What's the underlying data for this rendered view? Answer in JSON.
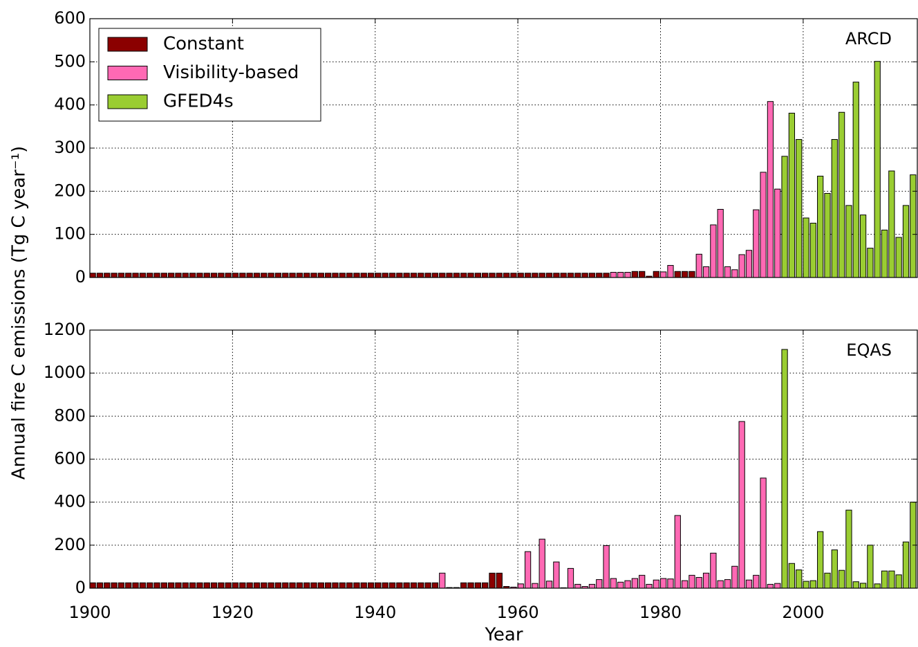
{
  "chart_data": [
    {
      "type": "bar",
      "title": "ARCD",
      "ylabel": "Annual fire C emissions (Tg C year⁻¹)",
      "xlim": [
        1900,
        2016
      ],
      "ylim": [
        0,
        600
      ],
      "yticks": [
        0,
        100,
        200,
        300,
        400,
        500,
        600
      ],
      "grid": true,
      "legend": "upper left",
      "series": [
        {
          "name": "Constant",
          "color": "#8b0000",
          "x": [
            1900,
            1901,
            1902,
            1903,
            1904,
            1905,
            1906,
            1907,
            1908,
            1909,
            1910,
            1911,
            1912,
            1913,
            1914,
            1915,
            1916,
            1917,
            1918,
            1919,
            1920,
            1921,
            1922,
            1923,
            1924,
            1925,
            1926,
            1927,
            1928,
            1929,
            1930,
            1931,
            1932,
            1933,
            1934,
            1935,
            1936,
            1937,
            1938,
            1939,
            1940,
            1941,
            1942,
            1943,
            1944,
            1945,
            1946,
            1947,
            1948,
            1949,
            1950,
            1951,
            1952,
            1953,
            1954,
            1955,
            1956,
            1957,
            1958,
            1959,
            1960,
            1961,
            1962,
            1963,
            1964,
            1965,
            1966,
            1967,
            1968,
            1969,
            1970,
            1971,
            1972,
            1976,
            1977,
            1978,
            1979,
            1982,
            1983,
            1984
          ],
          "values": [
            10,
            10,
            10,
            10,
            10,
            10,
            10,
            10,
            10,
            10,
            10,
            10,
            10,
            10,
            10,
            10,
            10,
            10,
            10,
            10,
            10,
            10,
            10,
            10,
            10,
            10,
            10,
            10,
            10,
            10,
            10,
            10,
            10,
            10,
            10,
            10,
            10,
            10,
            10,
            10,
            10,
            10,
            10,
            10,
            10,
            10,
            10,
            10,
            10,
            10,
            10,
            10,
            10,
            10,
            10,
            10,
            10,
            10,
            10,
            10,
            10,
            10,
            10,
            10,
            10,
            10,
            10,
            10,
            10,
            10,
            10,
            10,
            10,
            14,
            14,
            3,
            14,
            14,
            14,
            14
          ]
        },
        {
          "name": "Visibility-based",
          "color": "#ff69b4",
          "x": [
            1973,
            1974,
            1975,
            1980,
            1981,
            1985,
            1986,
            1987,
            1988,
            1989,
            1990,
            1991,
            1992,
            1993,
            1994,
            1995,
            1996
          ],
          "values": [
            12,
            12,
            12,
            13,
            28,
            54,
            25,
            122,
            158,
            25,
            18,
            53,
            63,
            157,
            244,
            408,
            205
          ]
        },
        {
          "name": "GFED4s",
          "color": "#9acd32",
          "x": [
            1997,
            1998,
            1999,
            2000,
            2001,
            2002,
            2003,
            2004,
            2005,
            2006,
            2007,
            2008,
            2009,
            2010,
            2011,
            2012,
            2013,
            2014,
            2015
          ],
          "values": [
            281,
            381,
            320,
            138,
            126,
            235,
            195,
            320,
            383,
            167,
            453,
            145,
            68,
            501,
            110,
            247,
            93,
            167,
            238
          ]
        }
      ]
    },
    {
      "type": "bar",
      "title": "EQAS",
      "xlabel": "Year",
      "xlim": [
        1900,
        2016
      ],
      "xticks": [
        1900,
        1920,
        1940,
        1960,
        1980,
        2000
      ],
      "ylim": [
        0,
        1200
      ],
      "yticks": [
        0,
        200,
        400,
        600,
        800,
        1000,
        1200
      ],
      "grid": true,
      "series": [
        {
          "name": "Constant",
          "color": "#8b0000",
          "x": [
            1900,
            1901,
            1902,
            1903,
            1904,
            1905,
            1906,
            1907,
            1908,
            1909,
            1910,
            1911,
            1912,
            1913,
            1914,
            1915,
            1916,
            1917,
            1918,
            1919,
            1920,
            1921,
            1922,
            1923,
            1924,
            1925,
            1926,
            1927,
            1928,
            1929,
            1930,
            1931,
            1932,
            1933,
            1934,
            1935,
            1936,
            1937,
            1938,
            1939,
            1940,
            1941,
            1942,
            1943,
            1944,
            1945,
            1946,
            1947,
            1948,
            1950,
            1951,
            1952,
            1953,
            1954,
            1955,
            1956,
            1957,
            1958
          ],
          "values": [
            25,
            25,
            25,
            25,
            25,
            25,
            25,
            25,
            25,
            25,
            25,
            25,
            25,
            25,
            25,
            25,
            25,
            25,
            25,
            25,
            25,
            25,
            25,
            25,
            25,
            25,
            25,
            25,
            25,
            25,
            25,
            25,
            25,
            25,
            25,
            25,
            25,
            25,
            25,
            25,
            25,
            25,
            25,
            25,
            25,
            25,
            25,
            25,
            25,
            3,
            3,
            25,
            25,
            25,
            25,
            70,
            70,
            8
          ]
        },
        {
          "name": "Visibility-based",
          "color": "#ff69b4",
          "x": [
            1949,
            1959,
            1960,
            1961,
            1962,
            1963,
            1964,
            1965,
            1966,
            1967,
            1968,
            1969,
            1970,
            1971,
            1972,
            1973,
            1974,
            1975,
            1976,
            1977,
            1978,
            1979,
            1980,
            1981,
            1982,
            1983,
            1984,
            1985,
            1986,
            1987,
            1988,
            1989,
            1990,
            1991,
            1992,
            1993,
            1994,
            1995,
            1996
          ],
          "values": [
            70,
            5,
            20,
            170,
            22,
            228,
            33,
            122,
            2,
            92,
            18,
            8,
            18,
            40,
            198,
            45,
            28,
            35,
            45,
            60,
            18,
            38,
            45,
            43,
            338,
            35,
            60,
            50,
            70,
            163,
            35,
            40,
            102,
            775,
            38,
            60,
            512,
            18,
            22
          ]
        },
        {
          "name": "GFED4s",
          "color": "#9acd32",
          "x": [
            1997,
            1998,
            1999,
            2000,
            2001,
            2002,
            2003,
            2004,
            2005,
            2006,
            2007,
            2008,
            2009,
            2010,
            2011,
            2012,
            2013,
            2014,
            2015
          ],
          "values": [
            1110,
            115,
            85,
            32,
            35,
            263,
            70,
            178,
            83,
            363,
            30,
            23,
            200,
            20,
            80,
            80,
            62,
            215,
            400
          ]
        }
      ]
    }
  ]
}
